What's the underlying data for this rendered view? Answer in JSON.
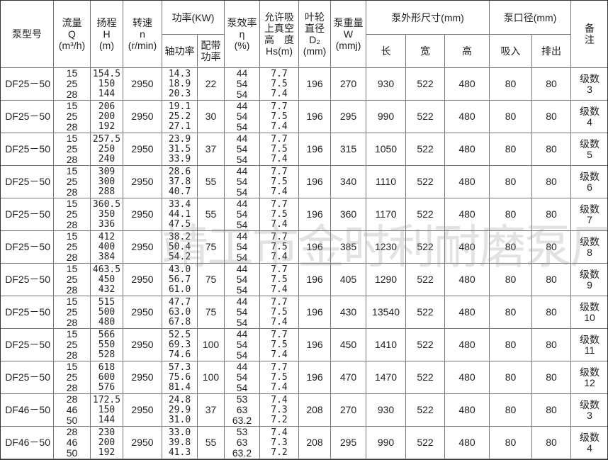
{
  "header": {
    "model": "泵型号",
    "flow": "流量\nQ\n(m³/h)",
    "head": "扬程\nH\n(m)",
    "speed": "转速\nn\n(r/min)",
    "power": "功率(KW)",
    "shaft_power": "轴功率",
    "motor_power": "配带\n功率",
    "efficiency": "泵效率\nη\n(%)",
    "suction": "允许吸\n上真空\n高　度\nHs(m)",
    "impeller": "叶轮\n直径\nD₂\n(mm)",
    "weight": "泵重量\nW\n(mmj)",
    "dimensions": "泵外形尺寸(mm)",
    "length": "长",
    "width": "宽",
    "height": "高",
    "port": "泵口径(mm)",
    "inlet": "吸入",
    "outlet": "排出",
    "remark": "备\n注"
  },
  "rows": [
    {
      "model": "DF25－50",
      "q": "15\n25\n28",
      "h": "154.5\n150\n144",
      "n": "2950",
      "shaft": "14.3\n18.9\n20.3",
      "motor": "22",
      "eff": "44\n54\n54",
      "hs": "7.7\n7.5\n7.4",
      "d2": "196",
      "w": "270",
      "l": "930",
      "wd": "522",
      "ht": "480",
      "in": "80",
      "out": "80",
      "remark": "级数\n3"
    },
    {
      "model": "DF25－50",
      "q": "15\n25\n28",
      "h": "206\n200\n192",
      "n": "2950",
      "shaft": "19.1\n25.2\n27.1",
      "motor": "30",
      "eff": "44\n54\n54",
      "hs": "7.7\n7.5\n7.4",
      "d2": "196",
      "w": "295",
      "l": "990",
      "wd": "522",
      "ht": "480",
      "in": "80",
      "out": "80",
      "remark": "级数\n4"
    },
    {
      "model": "DF25－50",
      "q": "15\n25\n28",
      "h": "257.5\n250\n240",
      "n": "2950",
      "shaft": "23.9\n31.5\n33.9",
      "motor": "37",
      "eff": "44\n54\n54",
      "hs": "7.7\n7.5\n7.4",
      "d2": "196",
      "w": "315",
      "l": "1050",
      "wd": "522",
      "ht": "480",
      "in": "80",
      "out": "80",
      "remark": "级数\n5"
    },
    {
      "model": "DF25－50",
      "q": "15\n25\n28",
      "h": "309\n300\n288",
      "n": "2950",
      "shaft": "28.6\n37.8\n40.7",
      "motor": "55",
      "eff": "44\n54\n54",
      "hs": "7.7\n7.5\n7.4",
      "d2": "196",
      "w": "340",
      "l": "1110",
      "wd": "522",
      "ht": "480",
      "in": "80",
      "out": "80",
      "remark": "级数\n6"
    },
    {
      "model": "DF25－50",
      "q": "15\n25\n28",
      "h": "360.5\n350\n336",
      "n": "2950",
      "shaft": "33.4\n44.1\n47.5",
      "motor": "55",
      "eff": "44\n54\n54",
      "hs": "7.7\n7.5\n7.4",
      "d2": "196",
      "w": "360",
      "l": "1170",
      "wd": "522",
      "ht": "480",
      "in": "80",
      "out": "80",
      "remark": "级数\n7"
    },
    {
      "model": "DF25－50",
      "q": "15\n25\n28",
      "h": "412\n400\n384",
      "n": "2950",
      "shaft": "38.2\n50.4\n54.2",
      "motor": "75",
      "eff": "44\n54\n54",
      "hs": "7.7\n7.5\n7.4",
      "d2": "196",
      "w": "385",
      "l": "1230",
      "wd": "522",
      "ht": "480",
      "in": "80",
      "out": "80",
      "remark": "级数\n8"
    },
    {
      "model": "DF25－50",
      "q": "15\n25\n28",
      "h": "463.5\n450\n432",
      "n": "2950",
      "shaft": "43.0\n56.7\n61.0",
      "motor": "75",
      "eff": "44\n54\n54",
      "hs": "7.7\n7.5\n7.4",
      "d2": "196",
      "w": "405",
      "l": "1290",
      "wd": "522",
      "ht": "480",
      "in": "80",
      "out": "80",
      "remark": "级数\n9"
    },
    {
      "model": "DF25－50",
      "q": "15\n25\n28",
      "h": "515\n500\n480",
      "n": "2950",
      "shaft": "47.7\n63.0\n67.8",
      "motor": "75",
      "eff": "44\n54\n54",
      "hs": "7.7\n7.5\n7.4",
      "d2": "196",
      "w": "430",
      "l": "13540",
      "wd": "522",
      "ht": "480",
      "in": "80",
      "out": "80",
      "remark": "级数\n10"
    },
    {
      "model": "DF25－50",
      "q": "15\n25\n28",
      "h": "566\n550\n528",
      "n": "2950",
      "shaft": "52.5\n69.3\n74.6",
      "motor": "100",
      "eff": "44\n54\n54",
      "hs": "7.7\n7.5\n7.4",
      "d2": "196",
      "w": "450",
      "l": "1410",
      "wd": "522",
      "ht": "480",
      "in": "80",
      "out": "80",
      "remark": "级数\n11"
    },
    {
      "model": "DF25－50",
      "q": "15\n25\n28",
      "h": "618\n600\n576",
      "n": "2950",
      "shaft": "57.3\n75.6\n81.4",
      "motor": "100",
      "eff": "44\n54\n54",
      "hs": "7.7\n7.5\n7.4",
      "d2": "196",
      "w": "470",
      "l": "1470",
      "wd": "522",
      "ht": "480",
      "in": "80",
      "out": "80",
      "remark": "级数\n12"
    },
    {
      "model": "DF46－50",
      "q": "28\n46\n50",
      "h": "172.5\n150\n144",
      "n": "2950",
      "shaft": "24.8\n29.9\n31.0",
      "motor": "37",
      "eff": "53\n63\n63.2",
      "hs": "7.4\n7.3\n7.2",
      "d2": "208",
      "w": "270",
      "l": "930",
      "wd": "522",
      "ht": "480",
      "in": "80",
      "out": "80",
      "remark": "级数\n3"
    },
    {
      "model": "DF46－50",
      "q": "28\n46\n50",
      "h": "230\n200\n192",
      "n": "2950",
      "shaft": "33.0\n39.8\n41.3",
      "motor": "55",
      "eff": "53\n63\n63.2",
      "hs": "7.4\n7.3\n7.2",
      "d2": "208",
      "w": "295",
      "l": "990",
      "wd": "522",
      "ht": "480",
      "in": "80",
      "out": "80",
      "remark": "级数\n4"
    }
  ],
  "watermark": "靖工市金时利耐磨泵厂"
}
